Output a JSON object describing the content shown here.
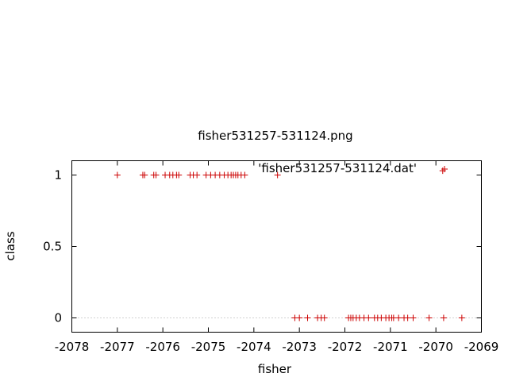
{
  "chart_data": {
    "type": "scatter",
    "title": "fisher531257-531124.png",
    "xlabel": "fisher",
    "ylabel": "class",
    "xlim": [
      -2078,
      -2069
    ],
    "ylim": [
      -0.1,
      1.1
    ],
    "xticks": [
      -2078,
      -2077,
      -2076,
      -2075,
      -2074,
      -2073,
      -2072,
      -2071,
      -2070,
      -2069
    ],
    "yticks": [
      0,
      0.5,
      1
    ],
    "xtick_labels": [
      "-2078",
      "-2077",
      "-2076",
      "-2075",
      "-2074",
      "-2073",
      "-2072",
      "-2071",
      "-2070",
      "-2069"
    ],
    "ytick_labels": [
      "0",
      "0.5",
      "1"
    ],
    "zero_line": true,
    "marker": "+",
    "color": "#cc0000",
    "series": [
      {
        "name": "'fisher531257-531124.dat'",
        "points": [
          {
            "x": -2077.0,
            "y": 1
          },
          {
            "x": -2076.44,
            "y": 1
          },
          {
            "x": -2076.4,
            "y": 1
          },
          {
            "x": -2076.2,
            "y": 1
          },
          {
            "x": -2076.15,
            "y": 1
          },
          {
            "x": -2075.95,
            "y": 1
          },
          {
            "x": -2075.85,
            "y": 1
          },
          {
            "x": -2075.78,
            "y": 1
          },
          {
            "x": -2075.7,
            "y": 1
          },
          {
            "x": -2075.65,
            "y": 1
          },
          {
            "x": -2075.4,
            "y": 1
          },
          {
            "x": -2075.33,
            "y": 1
          },
          {
            "x": -2075.25,
            "y": 1
          },
          {
            "x": -2075.05,
            "y": 1
          },
          {
            "x": -2074.95,
            "y": 1
          },
          {
            "x": -2074.85,
            "y": 1
          },
          {
            "x": -2074.75,
            "y": 1
          },
          {
            "x": -2074.65,
            "y": 1
          },
          {
            "x": -2074.57,
            "y": 1
          },
          {
            "x": -2074.5,
            "y": 1
          },
          {
            "x": -2074.45,
            "y": 1
          },
          {
            "x": -2074.4,
            "y": 1
          },
          {
            "x": -2074.35,
            "y": 1
          },
          {
            "x": -2074.28,
            "y": 1
          },
          {
            "x": -2074.2,
            "y": 1
          },
          {
            "x": -2073.48,
            "y": 1
          },
          {
            "x": -2069.85,
            "y": 1.03
          },
          {
            "x": -2073.1,
            "y": 0
          },
          {
            "x": -2073.0,
            "y": 0
          },
          {
            "x": -2072.82,
            "y": 0
          },
          {
            "x": -2072.6,
            "y": 0
          },
          {
            "x": -2072.52,
            "y": 0
          },
          {
            "x": -2072.45,
            "y": 0
          },
          {
            "x": -2071.92,
            "y": 0
          },
          {
            "x": -2071.87,
            "y": 0
          },
          {
            "x": -2071.82,
            "y": 0
          },
          {
            "x": -2071.75,
            "y": 0
          },
          {
            "x": -2071.68,
            "y": 0
          },
          {
            "x": -2071.58,
            "y": 0
          },
          {
            "x": -2071.48,
            "y": 0
          },
          {
            "x": -2071.35,
            "y": 0
          },
          {
            "x": -2071.28,
            "y": 0
          },
          {
            "x": -2071.2,
            "y": 0
          },
          {
            "x": -2071.1,
            "y": 0
          },
          {
            "x": -2071.03,
            "y": 0
          },
          {
            "x": -2070.97,
            "y": 0
          },
          {
            "x": -2070.93,
            "y": 0
          },
          {
            "x": -2070.82,
            "y": 0
          },
          {
            "x": -2070.7,
            "y": 0
          },
          {
            "x": -2070.62,
            "y": 0
          },
          {
            "x": -2070.5,
            "y": 0
          },
          {
            "x": -2070.15,
            "y": 0
          },
          {
            "x": -2069.83,
            "y": 0
          },
          {
            "x": -2069.43,
            "y": 0
          }
        ]
      }
    ]
  }
}
